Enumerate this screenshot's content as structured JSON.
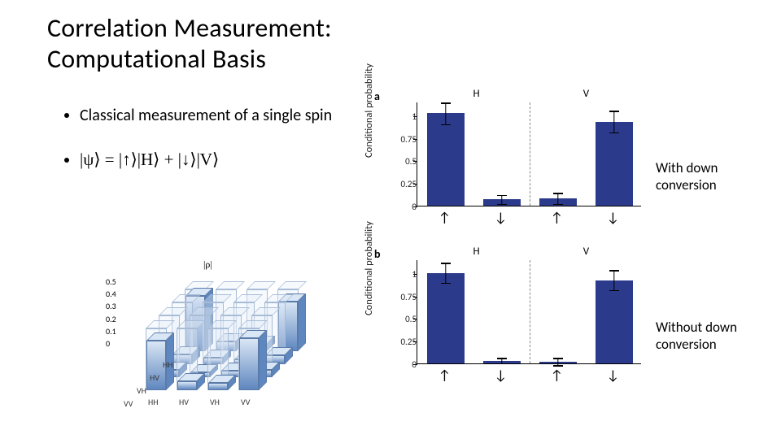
{
  "title_line1": "Correlation Measurement:",
  "title_line2": "Computational Basis",
  "bullets": {
    "b1": "Classical measurement of a single spin",
    "b2": "|ψ⟩ = |↑⟩|H⟩ + |↓⟩|V⟩"
  },
  "annotations": {
    "with": "With down conversion",
    "without": "Without down conversion"
  },
  "panel_a": {
    "letter": "a",
    "yaxis": "Conditional probability",
    "top_left": "H",
    "top_right": "V",
    "yticks": [
      "0",
      "0.25",
      "0.5",
      "0.75",
      "1"
    ],
    "ylim": [
      0,
      1.15
    ],
    "bar_color": "#2b3a8a",
    "bars": [
      {
        "x_arrow": "↑",
        "value": 1.02,
        "err": 0.12
      },
      {
        "x_arrow": "↓",
        "value": 0.07,
        "err": 0.05
      },
      {
        "x_arrow": "↑",
        "value": 0.08,
        "err": 0.06
      },
      {
        "x_arrow": "↓",
        "value": 0.93,
        "err": 0.12
      }
    ]
  },
  "panel_b": {
    "letter": "b",
    "yaxis": "Conditional probability",
    "top_left": "H",
    "top_right": "V",
    "yticks": [
      "0",
      "0.25",
      "0.5",
      "0.75",
      "1"
    ],
    "ylim": [
      0,
      1.15
    ],
    "bar_color": "#2b3a8a",
    "bars": [
      {
        "x_arrow": "↑",
        "value": 1.0,
        "err": 0.11
      },
      {
        "x_arrow": "↓",
        "value": 0.03,
        "err": 0.03
      },
      {
        "x_arrow": "↑",
        "value": 0.02,
        "err": 0.04
      },
      {
        "x_arrow": "↓",
        "value": 0.92,
        "err": 0.11
      }
    ]
  },
  "density3d": {
    "title": "|ρ|",
    "zticks": [
      "0",
      "0.1",
      "0.2",
      "0.3",
      "0.4",
      "0.5"
    ],
    "row_labels": [
      "HH",
      "HV",
      "VH",
      "VV"
    ],
    "col_labels": [
      "HH",
      "HV",
      "VH",
      "VV"
    ],
    "ghost_max": 0.5,
    "fill_top": "#d9e6f5",
    "fill_bottom": "#5f87bf",
    "values": [
      [
        0.45,
        0.08,
        0.06,
        0.4
      ],
      [
        0.08,
        0.05,
        0.04,
        0.07
      ],
      [
        0.06,
        0.04,
        0.05,
        0.06
      ],
      [
        0.4,
        0.07,
        0.06,
        0.42
      ]
    ]
  },
  "colors": {
    "bg": "#ffffff",
    "text": "#000000",
    "axis": "#000000"
  }
}
